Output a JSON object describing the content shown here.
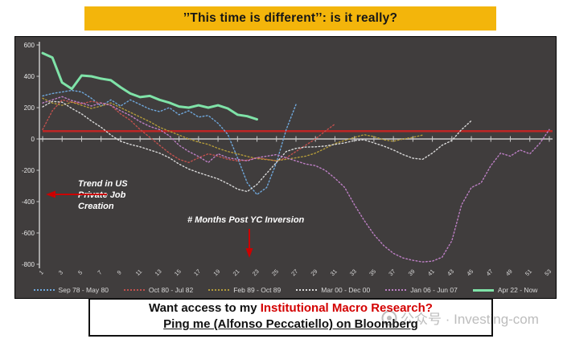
{
  "title": {
    "text": "’’This time is different’’: is it really?"
  },
  "annotations": {
    "trend_lines": [
      "Trend in US",
      "Private Job",
      "Creation"
    ],
    "months_label": "# Months Post YC Inversion"
  },
  "banner": {
    "line1_black": "Want access to my ",
    "line1_red": "Institutional Macro Research?",
    "line2": "Ping me (Alfonso Peccatiello) on Bloomberg"
  },
  "watermark": {
    "text": "公众号 · Investing-com"
  },
  "colors": {
    "banner_gold": "#F3B50B",
    "panel_bg": "#403D3D",
    "axis": "#c9c9c9",
    "tick_text": "#e8e8e8",
    "reference_red": "#BE2625",
    "arrow_red": "#CC0000"
  },
  "chart_data": {
    "type": "line",
    "title": "",
    "xlabel": "# Months Post YC Inversion",
    "ylabel": "Trend in US Private Job Creation",
    "ylim": [
      -800,
      600
    ],
    "yticks": [
      600,
      400,
      200,
      0,
      -200,
      -400,
      -600,
      -800
    ],
    "xticks": [
      1,
      3,
      5,
      7,
      9,
      11,
      13,
      15,
      17,
      19,
      21,
      23,
      25,
      27,
      29,
      31,
      33,
      35,
      37,
      39,
      41,
      43,
      45,
      47,
      49,
      51,
      53
    ],
    "grid": false,
    "legend_position": "bottom",
    "reference_line": {
      "value": 50,
      "color": "#BE2625"
    },
    "x_start_month": 1,
    "series": [
      {
        "name": "Sep 78 - May 80",
        "color": "#6fa8dc",
        "style": "dotted",
        "values": [
          275,
          290,
          300,
          310,
          300,
          260,
          210,
          250,
          210,
          250,
          220,
          190,
          175,
          200,
          155,
          180,
          140,
          150,
          100,
          30,
          -120,
          -280,
          -355,
          -310,
          -150,
          60,
          220
        ]
      },
      {
        "name": "Oct 80 - Jul 82",
        "color": "#c0504d",
        "style": "dotted",
        "values": [
          60,
          180,
          250,
          235,
          225,
          240,
          230,
          215,
          160,
          120,
          60,
          10,
          -40,
          -90,
          -130,
          -150,
          -120,
          -95,
          -110,
          -130,
          -140,
          -135,
          -120,
          -130,
          -140,
          -120,
          -80,
          -40,
          0,
          50,
          95
        ]
      },
      {
        "name": "Feb 89 - Oct 89",
        "color": "#b29a3a",
        "style": "dotted",
        "values": [
          260,
          230,
          215,
          235,
          215,
          195,
          210,
          230,
          200,
          170,
          140,
          110,
          75,
          50,
          25,
          0,
          -20,
          -35,
          -60,
          -80,
          -95,
          -112,
          -125,
          -132,
          -139,
          -130,
          -120,
          -110,
          -90,
          -60,
          -30,
          -10,
          10,
          27,
          15,
          -5,
          -15,
          0,
          10,
          25
        ]
      },
      {
        "name": "Mar 00 - Dec 00",
        "color": "#d8d8d8",
        "style": "dotted",
        "values": [
          205,
          240,
          235,
          195,
          160,
          115,
          75,
          25,
          -15,
          -35,
          -50,
          -70,
          -90,
          -120,
          -160,
          -192,
          -215,
          -235,
          -255,
          -285,
          -320,
          -336,
          -290,
          -219,
          -149,
          -80,
          -60,
          -52,
          -50,
          -45,
          -35,
          -25,
          -10,
          -5,
          -25,
          -45,
          -70,
          -100,
          -123,
          -130,
          -90,
          -40,
          -10,
          60,
          117
        ]
      },
      {
        "name": "Jan 06 - Jun 07",
        "color": "#bc7fc4",
        "style": "dotted",
        "values": [
          230,
          250,
          270,
          245,
          230,
          210,
          230,
          215,
          180,
          150,
          110,
          80,
          60,
          20,
          -40,
          -80,
          -112,
          -150,
          -95,
          -120,
          -130,
          -140,
          -120,
          -110,
          -100,
          -120,
          -140,
          -160,
          -170,
          -200,
          -250,
          -310,
          -420,
          -520,
          -610,
          -680,
          -730,
          -760,
          -775,
          -785,
          -780,
          -755,
          -650,
          -420,
          -310,
          -280,
          -170,
          -90,
          -110,
          -70,
          -95,
          -30,
          60
        ]
      },
      {
        "name": "Apr 22 - Now",
        "color": "#7fe3a8",
        "style": "solid",
        "values": [
          548,
          520,
          360,
          320,
          405,
          400,
          385,
          375,
          330,
          290,
          267,
          275,
          250,
          232,
          207,
          200,
          215,
          200,
          215,
          195,
          155,
          145,
          125
        ]
      }
    ]
  }
}
